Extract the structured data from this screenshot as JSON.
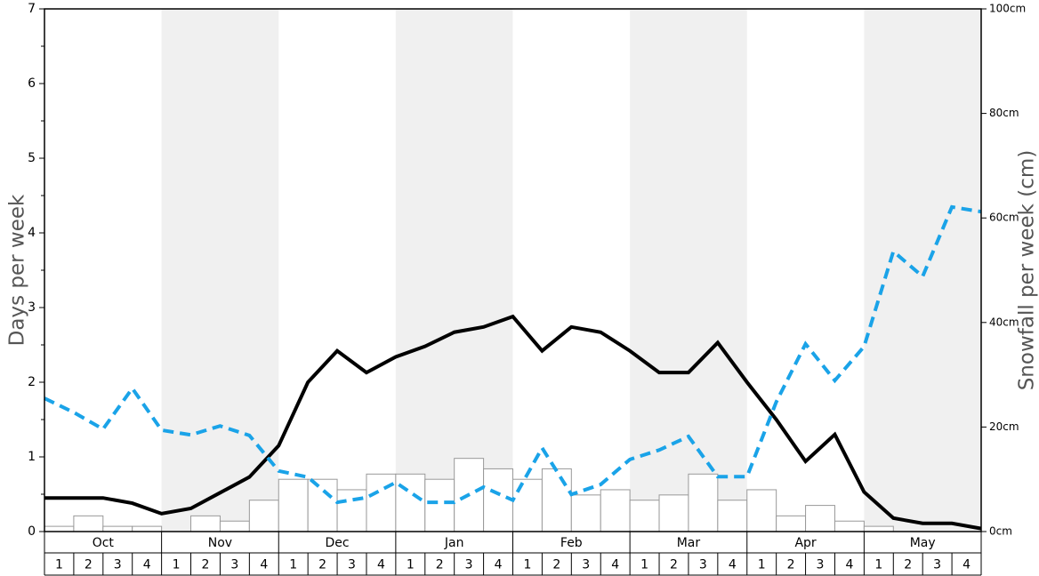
{
  "chart_data": {
    "type": "bar",
    "y_label": "Days per week",
    "y2_label": "Snowfall per week (cm)",
    "months": [
      "Oct",
      "Nov",
      "Dec",
      "Jan",
      "Feb",
      "Mar",
      "Apr",
      "May"
    ],
    "weeks": [
      "1",
      "2",
      "3",
      "4"
    ],
    "shade_color": "#f0f0f0",
    "ylim": [
      0,
      7
    ],
    "yticks": [
      0,
      1,
      2,
      3,
      4,
      5,
      6,
      7
    ],
    "yminorticks": [
      0.5,
      1.5,
      2.5,
      3.5,
      4.5,
      5.5,
      6.5
    ],
    "y2lim": [
      0,
      100
    ],
    "y2ticks": [
      {
        "value": 0,
        "label": "0cm"
      },
      {
        "value": 20,
        "label": "20cm"
      },
      {
        "value": 40,
        "label": "40cm"
      },
      {
        "value": 60,
        "label": "60cm"
      },
      {
        "value": 80,
        "label": "80cm"
      },
      {
        "value": 100,
        "label": "100cm"
      }
    ],
    "series": [
      {
        "type": "bar",
        "color": "#ffffff",
        "stroke": "#999999",
        "values": [
          0.07,
          0.21,
          0.07,
          0.07,
          0,
          0.21,
          0.14,
          0.42,
          0.7,
          0.7,
          0.56,
          0.77,
          0.77,
          0.7,
          0.98,
          0.84,
          0.7,
          0.84,
          0.49,
          0.56,
          0.42,
          0.49,
          0.77,
          0.42,
          0.56,
          0.21,
          0.35,
          0.14,
          0.07,
          0,
          0,
          0
        ]
      },
      {
        "type": "line",
        "color": "#000000",
        "values": [
          0.45,
          0.45,
          0.45,
          0.38,
          0.24,
          0.31,
          0.52,
          0.73,
          1.15,
          2.0,
          2.42,
          2.13,
          2.34,
          2.48,
          2.67,
          2.74,
          2.88,
          2.42,
          2.74,
          2.67,
          2.42,
          2.13,
          2.13,
          2.53,
          2.0,
          1.5,
          0.94,
          1.3,
          0.53,
          0.18,
          0.11,
          0.11,
          0.04
        ]
      },
      {
        "type": "line",
        "color": "#1aa3e8",
        "axis": "y2",
        "dashed": true,
        "values": [
          25.5,
          22.8,
          19.6,
          27.4,
          19.4,
          18.5,
          20.2,
          18.4,
          11.6,
          10.4,
          5.6,
          6.5,
          9.4,
          5.6,
          5.6,
          8.5,
          6.0,
          16.0,
          7.1,
          9.0,
          13.8,
          15.6,
          18.2,
          10.5,
          10.5,
          24.8,
          35.9,
          28.9,
          35.4,
          53.6,
          48.8,
          62.1,
          61.2
        ]
      }
    ]
  }
}
